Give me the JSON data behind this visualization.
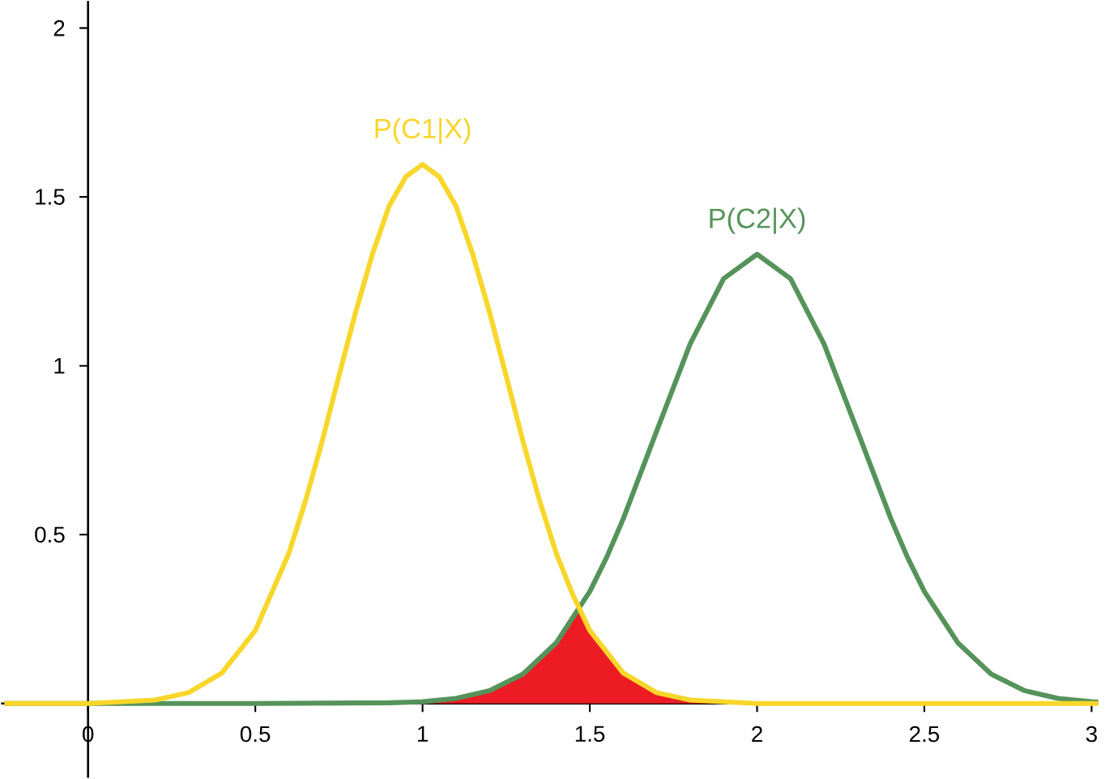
{
  "chart_data": {
    "type": "line",
    "xlim": [
      -0.26,
      3.02
    ],
    "ylim": [
      -0.22,
      2.08
    ],
    "xticks": [
      0,
      0.5,
      1,
      1.5,
      2,
      2.5,
      3
    ],
    "yticks": [
      0.5,
      1,
      1.5,
      2
    ],
    "grid": false,
    "legend": false,
    "marker": "none",
    "line_style": "solid",
    "series": [
      {
        "type": "area",
        "color": "#ed1c24",
        "x": [
          0.9,
          1,
          1.1,
          1.2,
          1.3,
          1.4,
          1.45,
          1.47,
          1.5,
          1.55,
          1.6,
          1.7,
          1.8,
          1.9,
          2
        ],
        "values": [
          0.002,
          0.005,
          0.015,
          0.038,
          0.087,
          0.18,
          0.247,
          0.273,
          0.216,
          0.142,
          0.09,
          0.032,
          0.01,
          0.002,
          0
        ]
      },
      {
        "name": "P(C2|X)",
        "color": "#55935a",
        "x": [
          -0.25,
          0.5,
          0.9,
          1,
          1.1,
          1.2,
          1.3,
          1.4,
          1.5,
          1.55,
          1.6,
          1.7,
          1.8,
          1.9,
          2,
          2.1,
          2.2,
          2.3,
          2.4,
          2.45,
          2.5,
          2.6,
          2.7,
          2.8,
          2.9,
          3,
          3.02
        ],
        "values": [
          0,
          0,
          0.002,
          0.005,
          0.015,
          0.038,
          0.087,
          0.18,
          0.332,
          0.432,
          0.547,
          0.807,
          1.065,
          1.258,
          1.33,
          1.258,
          1.065,
          0.807,
          0.547,
          0.432,
          0.332,
          0.18,
          0.087,
          0.038,
          0.015,
          0.005,
          0.004
        ]
      },
      {
        "name": "P(C1|X)",
        "color": "#f8d62a",
        "x": [
          -0.25,
          0,
          0.2,
          0.3,
          0.4,
          0.5,
          0.6,
          0.65,
          0.7,
          0.75,
          0.8,
          0.85,
          0.9,
          0.95,
          1,
          1.05,
          1.1,
          1.15,
          1.2,
          1.25,
          1.3,
          1.35,
          1.4,
          1.45,
          1.5,
          1.6,
          1.7,
          1.8,
          2,
          2.5,
          3.02
        ],
        "values": [
          0,
          0,
          0.01,
          0.032,
          0.09,
          0.216,
          0.444,
          0.6,
          0.777,
          0.97,
          1.159,
          1.33,
          1.473,
          1.56,
          1.596,
          1.56,
          1.473,
          1.33,
          1.159,
          0.97,
          0.777,
          0.6,
          0.444,
          0.32,
          0.216,
          0.09,
          0.032,
          0.01,
          0,
          0,
          0
        ]
      }
    ]
  }
}
